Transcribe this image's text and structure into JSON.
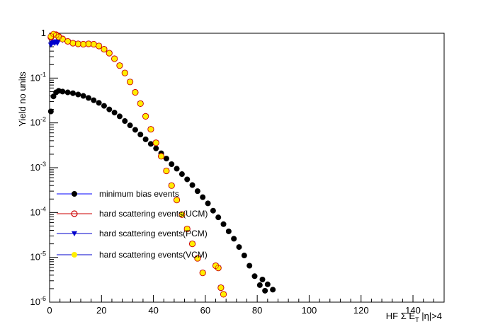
{
  "chart_data": {
    "type": "scatter",
    "title": "",
    "xlabel_parts": [
      "HF ",
      "Σ",
      " E",
      "T",
      " |η|>4"
    ],
    "ylabel": "Yield no units",
    "xlim": [
      0,
      152
    ],
    "ylim": [
      1e-06,
      1
    ],
    "y_scale": "log",
    "x_ticks": [
      0,
      20,
      40,
      60,
      80,
      100,
      120,
      140
    ],
    "x_tick_labels": [
      "0",
      "20",
      "40",
      "60",
      "80",
      "100",
      "120",
      "140"
    ],
    "y_ticks": [
      {
        "value": 1,
        "base": "1",
        "exp": ""
      },
      {
        "value": 0.1,
        "base": "10",
        "exp": "-1"
      },
      {
        "value": 0.01,
        "base": "10",
        "exp": "-2"
      },
      {
        "value": 0.001,
        "base": "10",
        "exp": "-3"
      },
      {
        "value": 0.0001,
        "base": "10",
        "exp": "-4"
      },
      {
        "value": 1e-05,
        "base": "10",
        "exp": "-5"
      },
      {
        "value": 1e-06,
        "base": "10",
        "exp": "-6"
      }
    ],
    "grid": false,
    "legend_position": "left-middle",
    "series": [
      {
        "name": "minimum bias events",
        "marker": "filled-circle",
        "color": "#000000",
        "line_color": "#0000ff",
        "points": [
          [
            0.5,
            0.018
          ],
          [
            1.5,
            0.039
          ],
          [
            2.5,
            0.048
          ],
          [
            3.5,
            0.052
          ],
          [
            5,
            0.05
          ],
          [
            7,
            0.048
          ],
          [
            9,
            0.046
          ],
          [
            11,
            0.043
          ],
          [
            13,
            0.04
          ],
          [
            15,
            0.036
          ],
          [
            17,
            0.032
          ],
          [
            19,
            0.028
          ],
          [
            21,
            0.024
          ],
          [
            23,
            0.02
          ],
          [
            25,
            0.017
          ],
          [
            27,
            0.014
          ],
          [
            29,
            0.011
          ],
          [
            31,
            0.0088
          ],
          [
            33,
            0.007
          ],
          [
            35,
            0.0055
          ],
          [
            37,
            0.0043
          ],
          [
            39,
            0.0034
          ],
          [
            41,
            0.0027
          ],
          [
            43,
            0.0021
          ],
          [
            45,
            0.0016
          ],
          [
            47,
            0.0012
          ],
          [
            49,
            0.00095
          ],
          [
            51,
            0.00072
          ],
          [
            53,
            0.00055
          ],
          [
            55,
            0.00041
          ],
          [
            57,
            0.0003
          ],
          [
            59,
            0.00022
          ],
          [
            61,
            0.00016
          ],
          [
            63,
            0.00011
          ],
          [
            65,
            7.8e-05
          ],
          [
            67,
            5.5e-05
          ],
          [
            69,
            3.8e-05
          ],
          [
            71,
            2.6e-05
          ],
          [
            73,
            1.7e-05
          ],
          [
            75,
            1.1e-05
          ],
          [
            77,
            6.5e-06
          ],
          [
            79,
            3.8e-06
          ],
          [
            81,
            2.4e-06
          ],
          [
            82,
            3.2e-06
          ],
          [
            83,
            1.8e-06
          ],
          [
            84,
            2.5e-06
          ],
          [
            86,
            1.9e-06
          ]
        ]
      },
      {
        "name": "hard scattering events(UCM)",
        "marker": "open-circle",
        "color": "#cc0000",
        "line_color": "#cc0000",
        "points": [
          [
            0.5,
            0.82
          ],
          [
            1.5,
            0.95
          ],
          [
            2.5,
            0.93
          ],
          [
            3.5,
            0.85
          ],
          [
            5,
            0.75
          ],
          [
            7,
            0.66
          ],
          [
            9,
            0.6
          ],
          [
            11,
            0.58
          ],
          [
            13,
            0.57
          ],
          [
            15,
            0.58
          ],
          [
            17,
            0.57
          ],
          [
            19,
            0.52
          ],
          [
            21,
            0.44
          ],
          [
            23,
            0.36
          ],
          [
            25,
            0.27
          ],
          [
            27,
            0.19
          ],
          [
            29,
            0.13
          ],
          [
            31,
            0.082
          ],
          [
            33,
            0.048
          ],
          [
            35,
            0.027
          ],
          [
            37,
            0.014
          ],
          [
            39,
            0.0072
          ],
          [
            41,
            0.0036
          ],
          [
            43,
            0.0018
          ],
          [
            45,
            0.00085
          ],
          [
            47,
            0.0004
          ],
          [
            49,
            0.00019
          ],
          [
            51,
            9e-05
          ],
          [
            53,
            4.3e-05
          ],
          [
            55,
            2e-05
          ],
          [
            57,
            9.5e-06
          ],
          [
            59,
            4.5e-06
          ],
          [
            64,
            6.5e-06
          ],
          [
            65,
            5.8e-06
          ],
          [
            66,
            2.1e-06
          ],
          [
            67,
            1.5e-06
          ]
        ]
      },
      {
        "name": "hard scattering events(PCM)",
        "marker": "triangle-down",
        "color": "#0000cc",
        "line_color": "#0000cc",
        "points": [
          [
            0.5,
            0.55
          ],
          [
            1,
            0.6
          ],
          [
            1.5,
            0.63
          ],
          [
            2,
            0.6
          ],
          [
            2.5,
            0.65
          ],
          [
            3,
            0.6
          ],
          [
            3.5,
            0.68
          ],
          [
            5,
            0.7
          ],
          [
            7,
            0.65
          ],
          [
            9,
            0.6
          ],
          [
            11,
            0.58
          ],
          [
            13,
            0.57
          ],
          [
            15,
            0.58
          ],
          [
            17,
            0.57
          ],
          [
            19,
            0.52
          ],
          [
            21,
            0.44
          ],
          [
            23,
            0.36
          ],
          [
            25,
            0.27
          ],
          [
            27,
            0.19
          ],
          [
            29,
            0.13
          ],
          [
            31,
            0.082
          ],
          [
            33,
            0.048
          ],
          [
            35,
            0.027
          ],
          [
            37,
            0.014
          ],
          [
            39,
            0.0072
          ],
          [
            41,
            0.0036
          ],
          [
            43,
            0.0018
          ],
          [
            45,
            0.00085
          ],
          [
            47,
            0.0004
          ],
          [
            49,
            0.00019
          ],
          [
            51,
            9e-05
          ],
          [
            53,
            4.3e-05
          ],
          [
            55,
            2e-05
          ],
          [
            57,
            9.5e-06
          ],
          [
            59,
            4.5e-06
          ],
          [
            64,
            6.5e-06
          ],
          [
            65,
            5.8e-06
          ],
          [
            66,
            2.1e-06
          ],
          [
            67,
            1.5e-06
          ]
        ]
      },
      {
        "name": "hard scattering events(VCM)",
        "marker": "filled-circle",
        "color": "#ffee00",
        "line_color": "#0000cc",
        "points": [
          [
            0.5,
            0.85
          ],
          [
            1.5,
            0.96
          ],
          [
            2.5,
            0.9
          ],
          [
            3.5,
            0.83
          ],
          [
            5,
            0.74
          ],
          [
            7,
            0.66
          ],
          [
            9,
            0.6
          ],
          [
            11,
            0.58
          ],
          [
            13,
            0.57
          ],
          [
            15,
            0.58
          ],
          [
            17,
            0.57
          ],
          [
            19,
            0.52
          ],
          [
            21,
            0.44
          ],
          [
            23,
            0.36
          ],
          [
            25,
            0.27
          ],
          [
            27,
            0.19
          ],
          [
            29,
            0.13
          ],
          [
            31,
            0.082
          ],
          [
            33,
            0.048
          ],
          [
            35,
            0.027
          ],
          [
            37,
            0.014
          ],
          [
            39,
            0.0072
          ],
          [
            41,
            0.0036
          ],
          [
            43,
            0.0018
          ],
          [
            45,
            0.00085
          ],
          [
            47,
            0.0004
          ],
          [
            49,
            0.00019
          ],
          [
            51,
            9e-05
          ],
          [
            53,
            4.3e-05
          ],
          [
            55,
            2e-05
          ],
          [
            57,
            9.5e-06
          ],
          [
            59,
            4.5e-06
          ],
          [
            64,
            6.5e-06
          ],
          [
            65,
            5.8e-06
          ],
          [
            66,
            2.1e-06
          ],
          [
            67,
            1.5e-06
          ]
        ]
      }
    ]
  }
}
